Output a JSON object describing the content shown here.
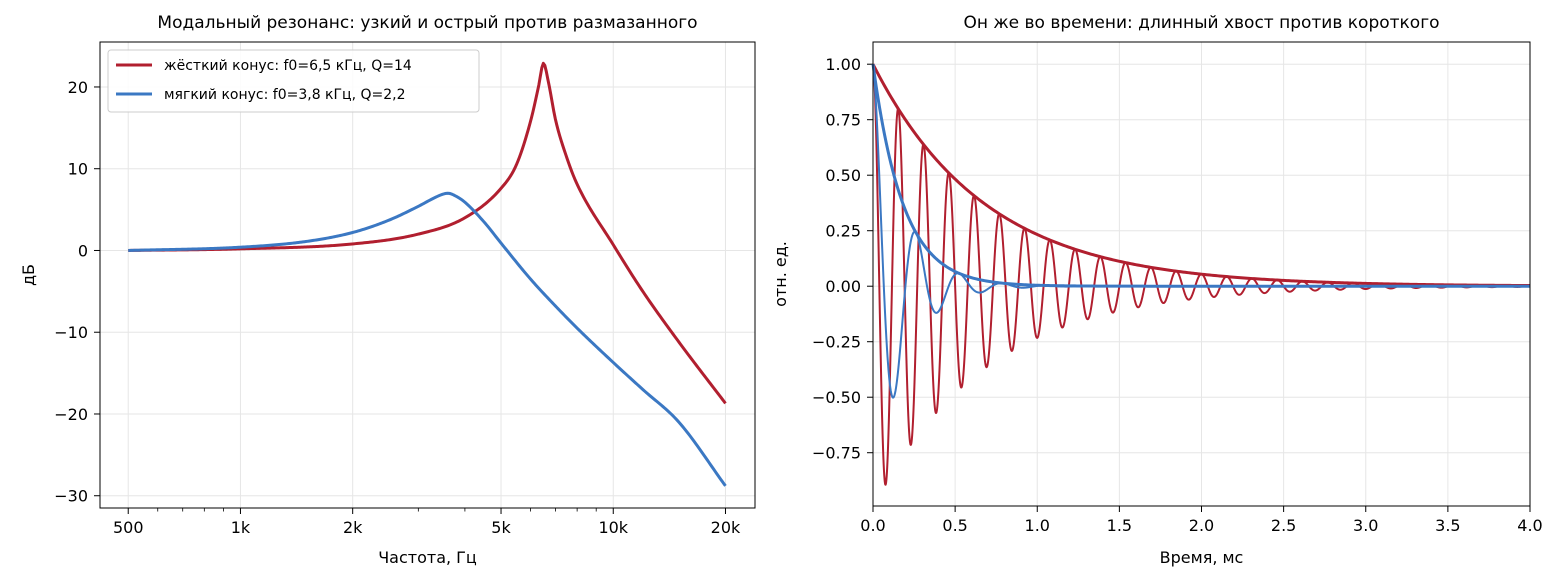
{
  "colors": {
    "stiff": "#b11f2f",
    "soft": "#3b78c3",
    "grid": "#e6e6e6",
    "axis": "#000000",
    "legend_border": "#cccccc"
  },
  "chart_data": [
    {
      "type": "line",
      "title": "Модальный резонанс: узкий и острый против размазанного",
      "xlabel": "Частота, Гц",
      "ylabel": "дБ",
      "xscale": "log",
      "xlim": [
        420,
        24000
      ],
      "ylim": [
        -31.5,
        25.5
      ],
      "grid": true,
      "legend": "top-left",
      "xticks": [
        {
          "value": 500,
          "label": "500"
        },
        {
          "value": 1000,
          "label": "1k"
        },
        {
          "value": 2000,
          "label": "2k"
        },
        {
          "value": 5000,
          "label": "5k"
        },
        {
          "value": 10000,
          "label": "10k"
        },
        {
          "value": 20000,
          "label": "20k"
        }
      ],
      "yticks": [
        {
          "value": 20,
          "label": "20"
        },
        {
          "value": 10,
          "label": "10"
        },
        {
          "value": 0,
          "label": "0"
        },
        {
          "value": -10,
          "label": "−10"
        },
        {
          "value": -20,
          "label": "−20"
        },
        {
          "value": -30,
          "label": "−30"
        }
      ],
      "series": [
        {
          "name": "жёсткий конус: f0=6,5 кГц, Q=14",
          "color_key": "stiff",
          "x": [
            500,
            1000,
            2000,
            3000,
            4000,
            5000,
            5500,
            6000,
            6300,
            6500,
            6700,
            7000,
            7500,
            8000,
            10000,
            12000,
            15000,
            20000
          ],
          "y": [
            0.0,
            0.2,
            0.8,
            2.0,
            4.0,
            7.6,
            10.5,
            15.8,
            20.0,
            22.9,
            20.6,
            16.0,
            11.4,
            8.1,
            0.7,
            -5.0,
            -11.2,
            -18.7
          ]
        },
        {
          "name": "мягкий конус: f0=3,8 кГц, Q=2,2",
          "color_key": "soft",
          "x": [
            500,
            1000,
            1500,
            2000,
            2500,
            3000,
            3300,
            3500,
            3600,
            3800,
            4000,
            4500,
            5000,
            6000,
            7000,
            8000,
            10000,
            12000,
            15000,
            20000
          ],
          "y": [
            0.0,
            0.4,
            1.1,
            2.2,
            3.7,
            5.4,
            6.4,
            6.9,
            7.0,
            6.6,
            5.9,
            3.5,
            0.9,
            -3.5,
            -6.8,
            -9.5,
            -13.7,
            -17.0,
            -21.0,
            -28.8
          ]
        }
      ]
    },
    {
      "type": "line",
      "title": "Он же во времени: длинный хвост против короткого",
      "xlabel": "Время, мс",
      "ylabel": "отн. ед.",
      "xlim": [
        0,
        4.0
      ],
      "ylim": [
        -0.99,
        1.1
      ],
      "grid": true,
      "xticks": [
        {
          "value": 0.0,
          "label": "0.0"
        },
        {
          "value": 0.5,
          "label": "0.5"
        },
        {
          "value": 1.0,
          "label": "1.0"
        },
        {
          "value": 1.5,
          "label": "1.5"
        },
        {
          "value": 2.0,
          "label": "2.0"
        },
        {
          "value": 2.5,
          "label": "2.5"
        },
        {
          "value": 3.0,
          "label": "3.0"
        },
        {
          "value": 3.5,
          "label": "3.5"
        },
        {
          "value": 4.0,
          "label": "4.0"
        }
      ],
      "yticks": [
        {
          "value": 1.0,
          "label": "1.00"
        },
        {
          "value": 0.75,
          "label": "0.75"
        },
        {
          "value": 0.5,
          "label": "0.50"
        },
        {
          "value": 0.25,
          "label": "0.25"
        },
        {
          "value": 0.0,
          "label": "0.00"
        },
        {
          "value": -0.25,
          "label": "−0.25"
        },
        {
          "value": -0.5,
          "label": "−0.50"
        },
        {
          "value": -0.75,
          "label": "−0.75"
        }
      ],
      "series": [
        {
          "name": "",
          "kind": "damped_cosine",
          "color_key": "stiff",
          "freq_khz": 6.5,
          "tau_ms": 0.686,
          "width": 2
        },
        {
          "name": "",
          "kind": "envelope",
          "color_key": "stiff",
          "tau_ms": 0.686,
          "width": 3
        },
        {
          "name": "",
          "kind": "damped_cosine",
          "color_key": "soft",
          "freq_khz": 3.8,
          "tau_ms": 0.184,
          "width": 2
        },
        {
          "name": "",
          "kind": "envelope",
          "color_key": "soft",
          "tau_ms": 0.184,
          "width": 3
        }
      ]
    }
  ]
}
